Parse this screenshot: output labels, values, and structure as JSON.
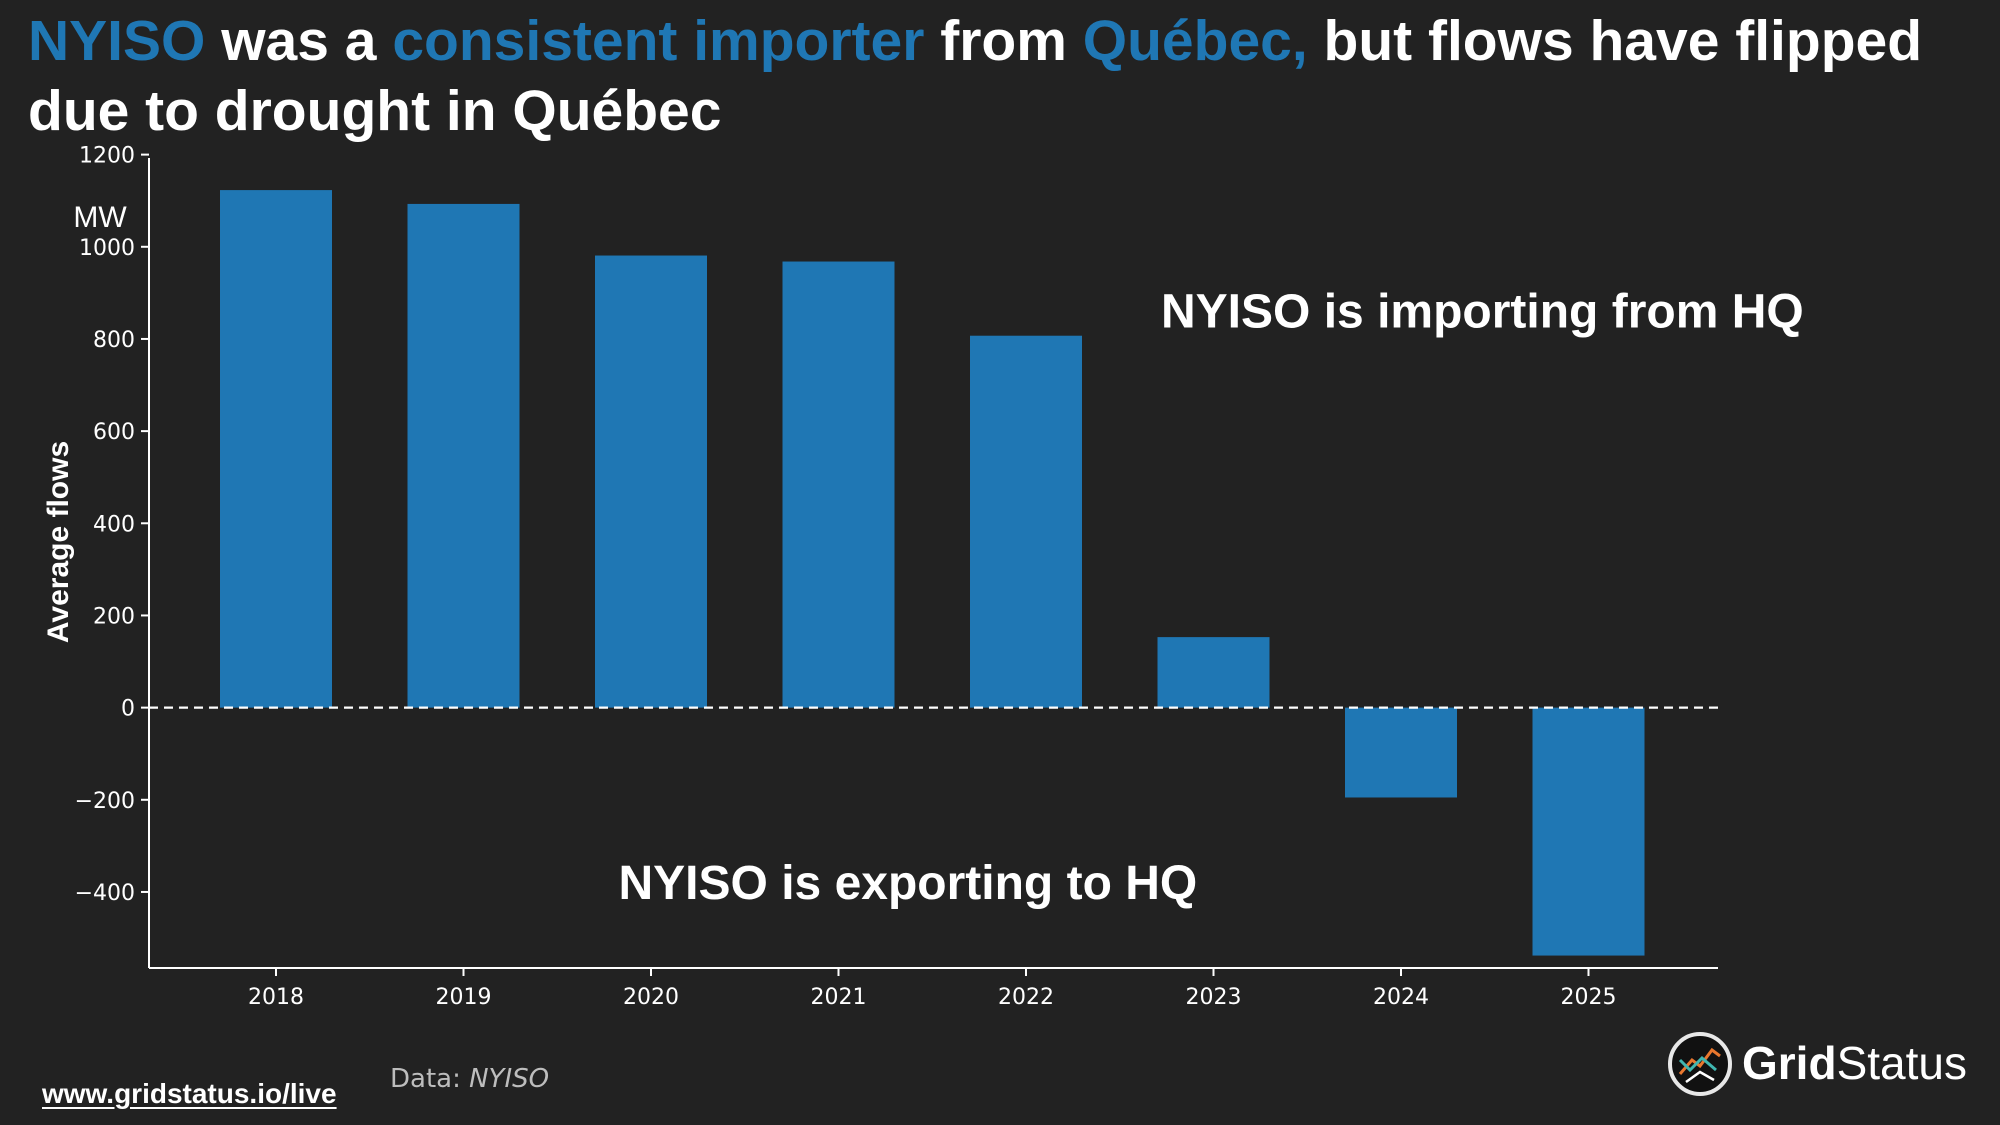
{
  "title": {
    "part1": "NYISO",
    "part2": " was a ",
    "part3": "consistent importer",
    "part4": " from ",
    "part5": "Québec,",
    "part6": " but flows have flipped due to drought in Québec"
  },
  "colors": {
    "background": "#222222",
    "bar": "#1f77b4",
    "highlight": "#1f77b4",
    "text": "#ffffff"
  },
  "chart_data": {
    "type": "bar",
    "categories": [
      "2018",
      "2019",
      "2020",
      "2021",
      "2022",
      "2023",
      "2024",
      "2025"
    ],
    "values": [
      1123,
      1093,
      981,
      968,
      807,
      153,
      -195,
      -538
    ],
    "ylabel": "Average flows",
    "yunit": "MW",
    "ylim": [
      -565,
      1210
    ],
    "yticks": [
      1200,
      1000,
      800,
      600,
      400,
      200,
      0,
      -200,
      -400
    ],
    "ytick_labels": [
      "1200",
      "1000",
      "800",
      "600",
      "400",
      "200",
      "0",
      "−200",
      "−400"
    ],
    "zero_line": "dashed",
    "grid": false,
    "annotations": [
      {
        "text": "NYISO is importing from HQ",
        "x": "2022",
        "y": 825
      },
      {
        "text": "NYISO is exporting to HQ",
        "x": "2021",
        "y": -415
      }
    ]
  },
  "footer": {
    "link": "www.gridstatus.io/live",
    "source_label": "Data: ",
    "source_name": "NYISO"
  },
  "brand": {
    "name_bold": "Grid",
    "name_regular": "Status",
    "logo_icon": "grid-status-logo-icon"
  }
}
